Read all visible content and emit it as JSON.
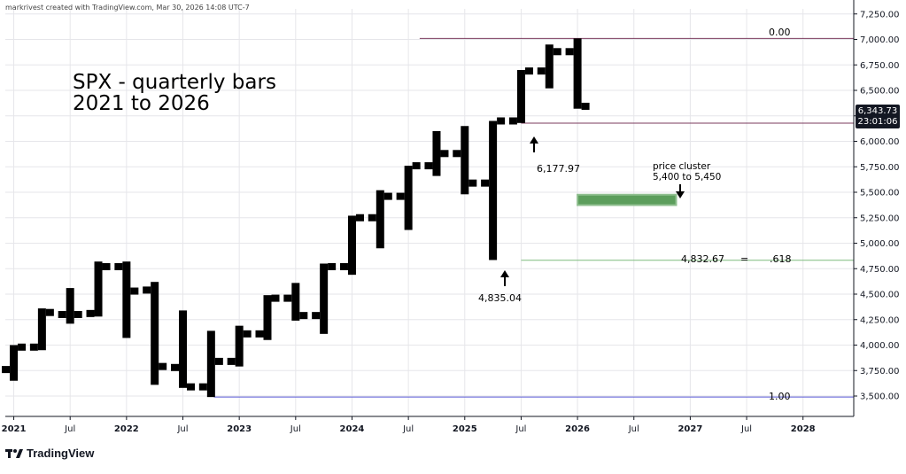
{
  "header": {
    "credit": "markrivest created with TradingView.com, Mar 30, 2026 14:08 UTC-7"
  },
  "annotations": {
    "title_line1": "SPX - quarterly bars",
    "title_line2": "2021 to 2026",
    "fib_top": "0.00",
    "fib_bottom": "1.00",
    "label_high": "6,177.97",
    "label_low": "4,835.04",
    "cluster_line1": "price cluster",
    "cluster_line2": "5,400 to 5,450",
    "fib_618_value": "4,832.67",
    "fib_618_eq": "=",
    "fib_618_ratio": ".618"
  },
  "price_badge": {
    "price": "6,343.73",
    "timer": "23:01:06"
  },
  "footer": {
    "brand": "TradingView"
  },
  "colors": {
    "bars": "#000000",
    "fib_top_line": "#7b3b5e",
    "fib_mid_line": "#7b3b5e",
    "fib_bottom_line": "#5b5bd6",
    "fib_618_line": "#7dbb7d",
    "cluster_fill": "#5c9e5c",
    "grid": "#e6e6ea",
    "badge_bg": "#131722"
  },
  "chart_data": {
    "type": "ohlc",
    "title": "SPX - quarterly bars",
    "xlabel": "",
    "ylabel": "",
    "ylim": [
      3300,
      7300
    ],
    "xlim_quarters": [
      -0.3,
      29.8
    ],
    "y_ticks": [
      "3,500.00",
      "3,750.00",
      "4,000.00",
      "4,250.00",
      "4,500.00",
      "4,750.00",
      "5,000.00",
      "5,250.00",
      "5,500.00",
      "5,750.00",
      "6,000.00",
      "6,250.00",
      "6,500.00",
      "6,750.00",
      "7,000.00",
      "7,250.00"
    ],
    "x_ticks": [
      {
        "label": "2021",
        "q": 0
      },
      {
        "label": "Jul",
        "q": 2
      },
      {
        "label": "2022",
        "q": 4
      },
      {
        "label": "Jul",
        "q": 6
      },
      {
        "label": "2023",
        "q": 8
      },
      {
        "label": "Jul",
        "q": 10
      },
      {
        "label": "2024",
        "q": 12
      },
      {
        "label": "Jul",
        "q": 14
      },
      {
        "label": "2025",
        "q": 16
      },
      {
        "label": "Jul",
        "q": 18
      },
      {
        "label": "2026",
        "q": 20
      },
      {
        "label": "Jul",
        "q": 22
      },
      {
        "label": "2027",
        "q": 24
      },
      {
        "label": "Jul",
        "q": 26
      },
      {
        "label": "2028",
        "q": 28
      }
    ],
    "bars": [
      {
        "q": 0,
        "o": 3760,
        "h": 4000,
        "l": 3650,
        "c": 3980
      },
      {
        "q": 1,
        "o": 3980,
        "h": 4360,
        "l": 3950,
        "c": 4320
      },
      {
        "q": 2,
        "o": 4300,
        "h": 4560,
        "l": 4210,
        "c": 4300
      },
      {
        "q": 3,
        "o": 4310,
        "h": 4820,
        "l": 4280,
        "c": 4770
      },
      {
        "q": 4,
        "o": 4770,
        "h": 4820,
        "l": 4070,
        "c": 4530
      },
      {
        "q": 5,
        "o": 4540,
        "h": 4620,
        "l": 3610,
        "c": 3790
      },
      {
        "q": 6,
        "o": 3780,
        "h": 4340,
        "l": 3580,
        "c": 3590
      },
      {
        "q": 7,
        "o": 3590,
        "h": 4140,
        "l": 3490,
        "c": 3840
      },
      {
        "q": 8,
        "o": 3840,
        "h": 4190,
        "l": 3790,
        "c": 4110
      },
      {
        "q": 9,
        "o": 4110,
        "h": 4490,
        "l": 4050,
        "c": 4460
      },
      {
        "q": 10,
        "o": 4460,
        "h": 4610,
        "l": 4240,
        "c": 4290
      },
      {
        "q": 11,
        "o": 4290,
        "h": 4800,
        "l": 4110,
        "c": 4770
      },
      {
        "q": 12,
        "o": 4770,
        "h": 5270,
        "l": 4690,
        "c": 5250
      },
      {
        "q": 13,
        "o": 5250,
        "h": 5520,
        "l": 4950,
        "c": 5460
      },
      {
        "q": 14,
        "o": 5460,
        "h": 5760,
        "l": 5130,
        "c": 5760
      },
      {
        "q": 15,
        "o": 5760,
        "h": 6100,
        "l": 5660,
        "c": 5880
      },
      {
        "q": 16,
        "o": 5880,
        "h": 6150,
        "l": 5480,
        "c": 5590
      },
      {
        "q": 17,
        "o": 5590,
        "h": 6200,
        "l": 4835,
        "c": 6200
      },
      {
        "q": 18,
        "o": 6200,
        "h": 6700,
        "l": 6180,
        "c": 6690
      },
      {
        "q": 19,
        "o": 6690,
        "h": 6950,
        "l": 6520,
        "c": 6880
      },
      {
        "q": 20,
        "o": 6880,
        "h": 7010,
        "l": 6320,
        "c": 6343.73
      }
    ],
    "levels": [
      {
        "name": "fib-0",
        "price": 7010,
        "q_from": 14.4,
        "q_to": 29.8
      },
      {
        "name": "fib-1",
        "price": 3490,
        "q_from": 7.1,
        "q_to": 29.8
      },
      {
        "name": "fib-0.618",
        "price": 4832.67,
        "q_from": 18.0,
        "q_to": 29.8
      },
      {
        "name": "swing-high",
        "price": 6177.97,
        "q_from": 18.0,
        "q_to": 29.8
      }
    ],
    "cluster_zone": {
      "low": 5400,
      "high": 5450,
      "q_from": 20.0,
      "q_to": 23.5
    }
  }
}
